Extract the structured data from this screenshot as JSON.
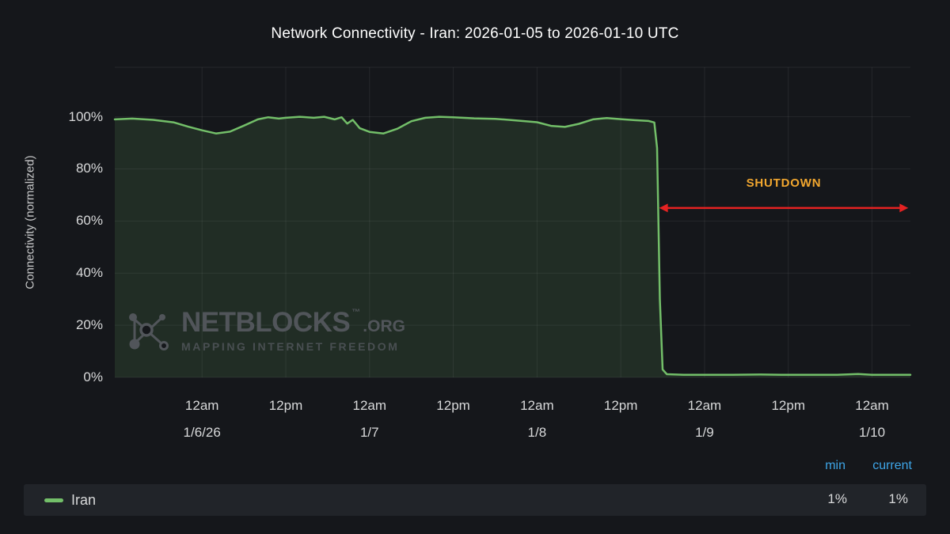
{
  "title": "Network Connectivity - Iran: 2026-01-05 to 2026-01-10 UTC",
  "watermark": {
    "name": "NETBLOCKS",
    "tm": "™",
    "tld": ".ORG",
    "tagline": "MAPPING INTERNET FREEDOM"
  },
  "chart_data": {
    "type": "area",
    "title": "Network Connectivity - Iran: 2026-01-05 to 2026-01-10 UTC",
    "xlabel": "",
    "ylabel": "Connectivity (normalized)",
    "ylim": [
      0,
      119
    ],
    "y_ticks": [
      0,
      20,
      40,
      60,
      80,
      100
    ],
    "y_unit": "%",
    "grid": true,
    "legend_position": "bottom",
    "x_unit_hours_from": "2026-01-05 00:00 UTC",
    "x_domain_hours": [
      11.5,
      125.5
    ],
    "x_ticks": [
      {
        "hour": 24,
        "time": "12am",
        "date": "1/6/26"
      },
      {
        "hour": 36,
        "time": "12pm",
        "date": ""
      },
      {
        "hour": 48,
        "time": "12am",
        "date": "1/7"
      },
      {
        "hour": 60,
        "time": "12pm",
        "date": ""
      },
      {
        "hour": 72,
        "time": "12am",
        "date": "1/8"
      },
      {
        "hour": 84,
        "time": "12pm",
        "date": ""
      },
      {
        "hour": 96,
        "time": "12am",
        "date": "1/9"
      },
      {
        "hour": 108,
        "time": "12pm",
        "date": ""
      },
      {
        "hour": 120,
        "time": "12am",
        "date": "1/10"
      }
    ],
    "series": [
      {
        "name": "Iran",
        "color": "#73bf69",
        "fill": "rgba(115,191,105,0.13)",
        "points": [
          [
            11.5,
            99
          ],
          [
            14,
            99.3
          ],
          [
            17,
            98.8
          ],
          [
            20,
            97.8
          ],
          [
            22,
            96.2
          ],
          [
            24,
            94.8
          ],
          [
            26,
            93.6
          ],
          [
            28,
            94.3
          ],
          [
            30,
            96.6
          ],
          [
            32,
            99
          ],
          [
            33.5,
            99.8
          ],
          [
            35,
            99.3
          ],
          [
            36,
            99.6
          ],
          [
            38,
            100
          ],
          [
            40,
            99.6
          ],
          [
            41.5,
            100
          ],
          [
            43,
            99
          ],
          [
            44,
            99.8
          ],
          [
            44.8,
            97.4
          ],
          [
            45.6,
            98.8
          ],
          [
            46.6,
            95.6
          ],
          [
            48,
            94.2
          ],
          [
            50,
            93.6
          ],
          [
            52,
            95.4
          ],
          [
            54,
            98.3
          ],
          [
            56,
            99.6
          ],
          [
            58,
            100
          ],
          [
            60,
            99.8
          ],
          [
            63,
            99.4
          ],
          [
            66,
            99.2
          ],
          [
            69,
            98.6
          ],
          [
            72,
            97.9
          ],
          [
            74,
            96.5
          ],
          [
            76,
            96.1
          ],
          [
            78,
            97.3
          ],
          [
            80,
            99
          ],
          [
            82,
            99.5
          ],
          [
            84,
            99.1
          ],
          [
            86,
            98.7
          ],
          [
            88,
            98.4
          ],
          [
            88.8,
            97.8
          ],
          [
            89.2,
            88
          ],
          [
            89.6,
            30
          ],
          [
            90,
            3
          ],
          [
            90.6,
            1.2
          ],
          [
            93,
            1
          ],
          [
            96,
            1
          ],
          [
            100,
            1
          ],
          [
            104,
            1.1
          ],
          [
            107,
            1
          ],
          [
            111,
            1
          ],
          [
            115,
            1
          ],
          [
            118,
            1.3
          ],
          [
            120,
            1
          ],
          [
            123,
            1
          ],
          [
            125.5,
            1
          ]
        ]
      }
    ],
    "annotation": {
      "label": "SHUTDOWN",
      "x_start_hour": 89.5,
      "x_end_hour": 125.2,
      "y_percent": 65
    }
  },
  "legend": {
    "headers": {
      "min": "min",
      "current": "current"
    },
    "rows": [
      {
        "name": "Iran",
        "color": "#73bf69",
        "min": "1%",
        "current": "1%"
      }
    ]
  },
  "colors": {
    "background": "#15171b",
    "legend_strip": "#212429",
    "text": "#d8d9da",
    "muted_text": "#c7c8c9",
    "title": "#ffffff",
    "grid": "rgba(255,255,255,0.07)",
    "series_green": "#73bf69",
    "series_fill": "rgba(115,191,105,0.13)",
    "header_blue": "#3ea6e8",
    "shutdown_orange": "#f2a72f",
    "arrow_red": "#e52222",
    "watermark": "#51555a"
  }
}
